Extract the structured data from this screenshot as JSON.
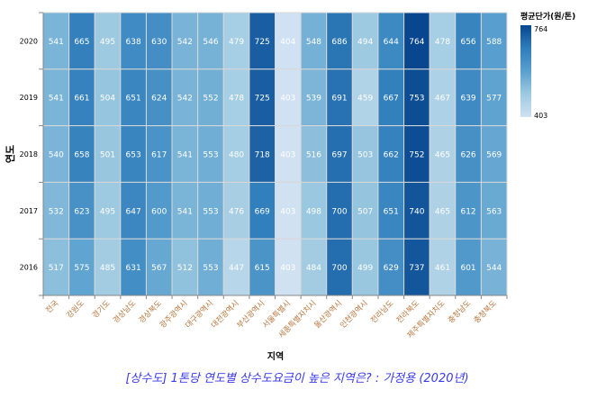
{
  "chart_data": {
    "type": "heatmap",
    "title": "[상수도] 1톤당 연도별 상수도요금이 높은 지역은? : 가정용 (2020년)",
    "xlabel": "지역",
    "ylabel": "연도",
    "legend_title": "평균단가(원/톤)",
    "legend_placement": "top-right",
    "color_range": [
      403,
      764
    ],
    "color_range_labels": [
      "764",
      "403"
    ],
    "x": [
      "전국",
      "강원도",
      "경기도",
      "경상남도",
      "경상북도",
      "광주광역시",
      "대구광역시",
      "대전광역시",
      "부산광역시",
      "서울특별시",
      "세종특별자치시",
      "울산광역시",
      "인천광역시",
      "전라남도",
      "전라북도",
      "제주특별자치도",
      "충청남도",
      "충청북도"
    ],
    "y": [
      "2020",
      "2019",
      "2018",
      "2017",
      "2016"
    ],
    "values": [
      [
        541,
        665,
        495,
        638,
        630,
        542,
        546,
        479,
        725,
        404,
        548,
        686,
        494,
        644,
        764,
        478,
        656,
        588
      ],
      [
        541,
        661,
        504,
        651,
        624,
        542,
        552,
        478,
        725,
        403,
        539,
        691,
        459,
        667,
        753,
        467,
        639,
        577
      ],
      [
        540,
        658,
        501,
        653,
        617,
        541,
        553,
        480,
        718,
        403,
        516,
        697,
        503,
        662,
        752,
        465,
        626,
        569
      ],
      [
        532,
        623,
        495,
        647,
        600,
        541,
        553,
        476,
        669,
        403,
        498,
        700,
        507,
        651,
        740,
        465,
        612,
        563
      ],
      [
        517,
        575,
        485,
        631,
        567,
        512,
        553,
        447,
        615,
        403,
        484,
        700,
        499,
        629,
        737,
        461,
        601,
        544
      ]
    ],
    "colors": {
      "low": "#d0e1f2",
      "high": "#08468f",
      "title": "#3a3aee",
      "xtick": "#b8743a"
    }
  }
}
